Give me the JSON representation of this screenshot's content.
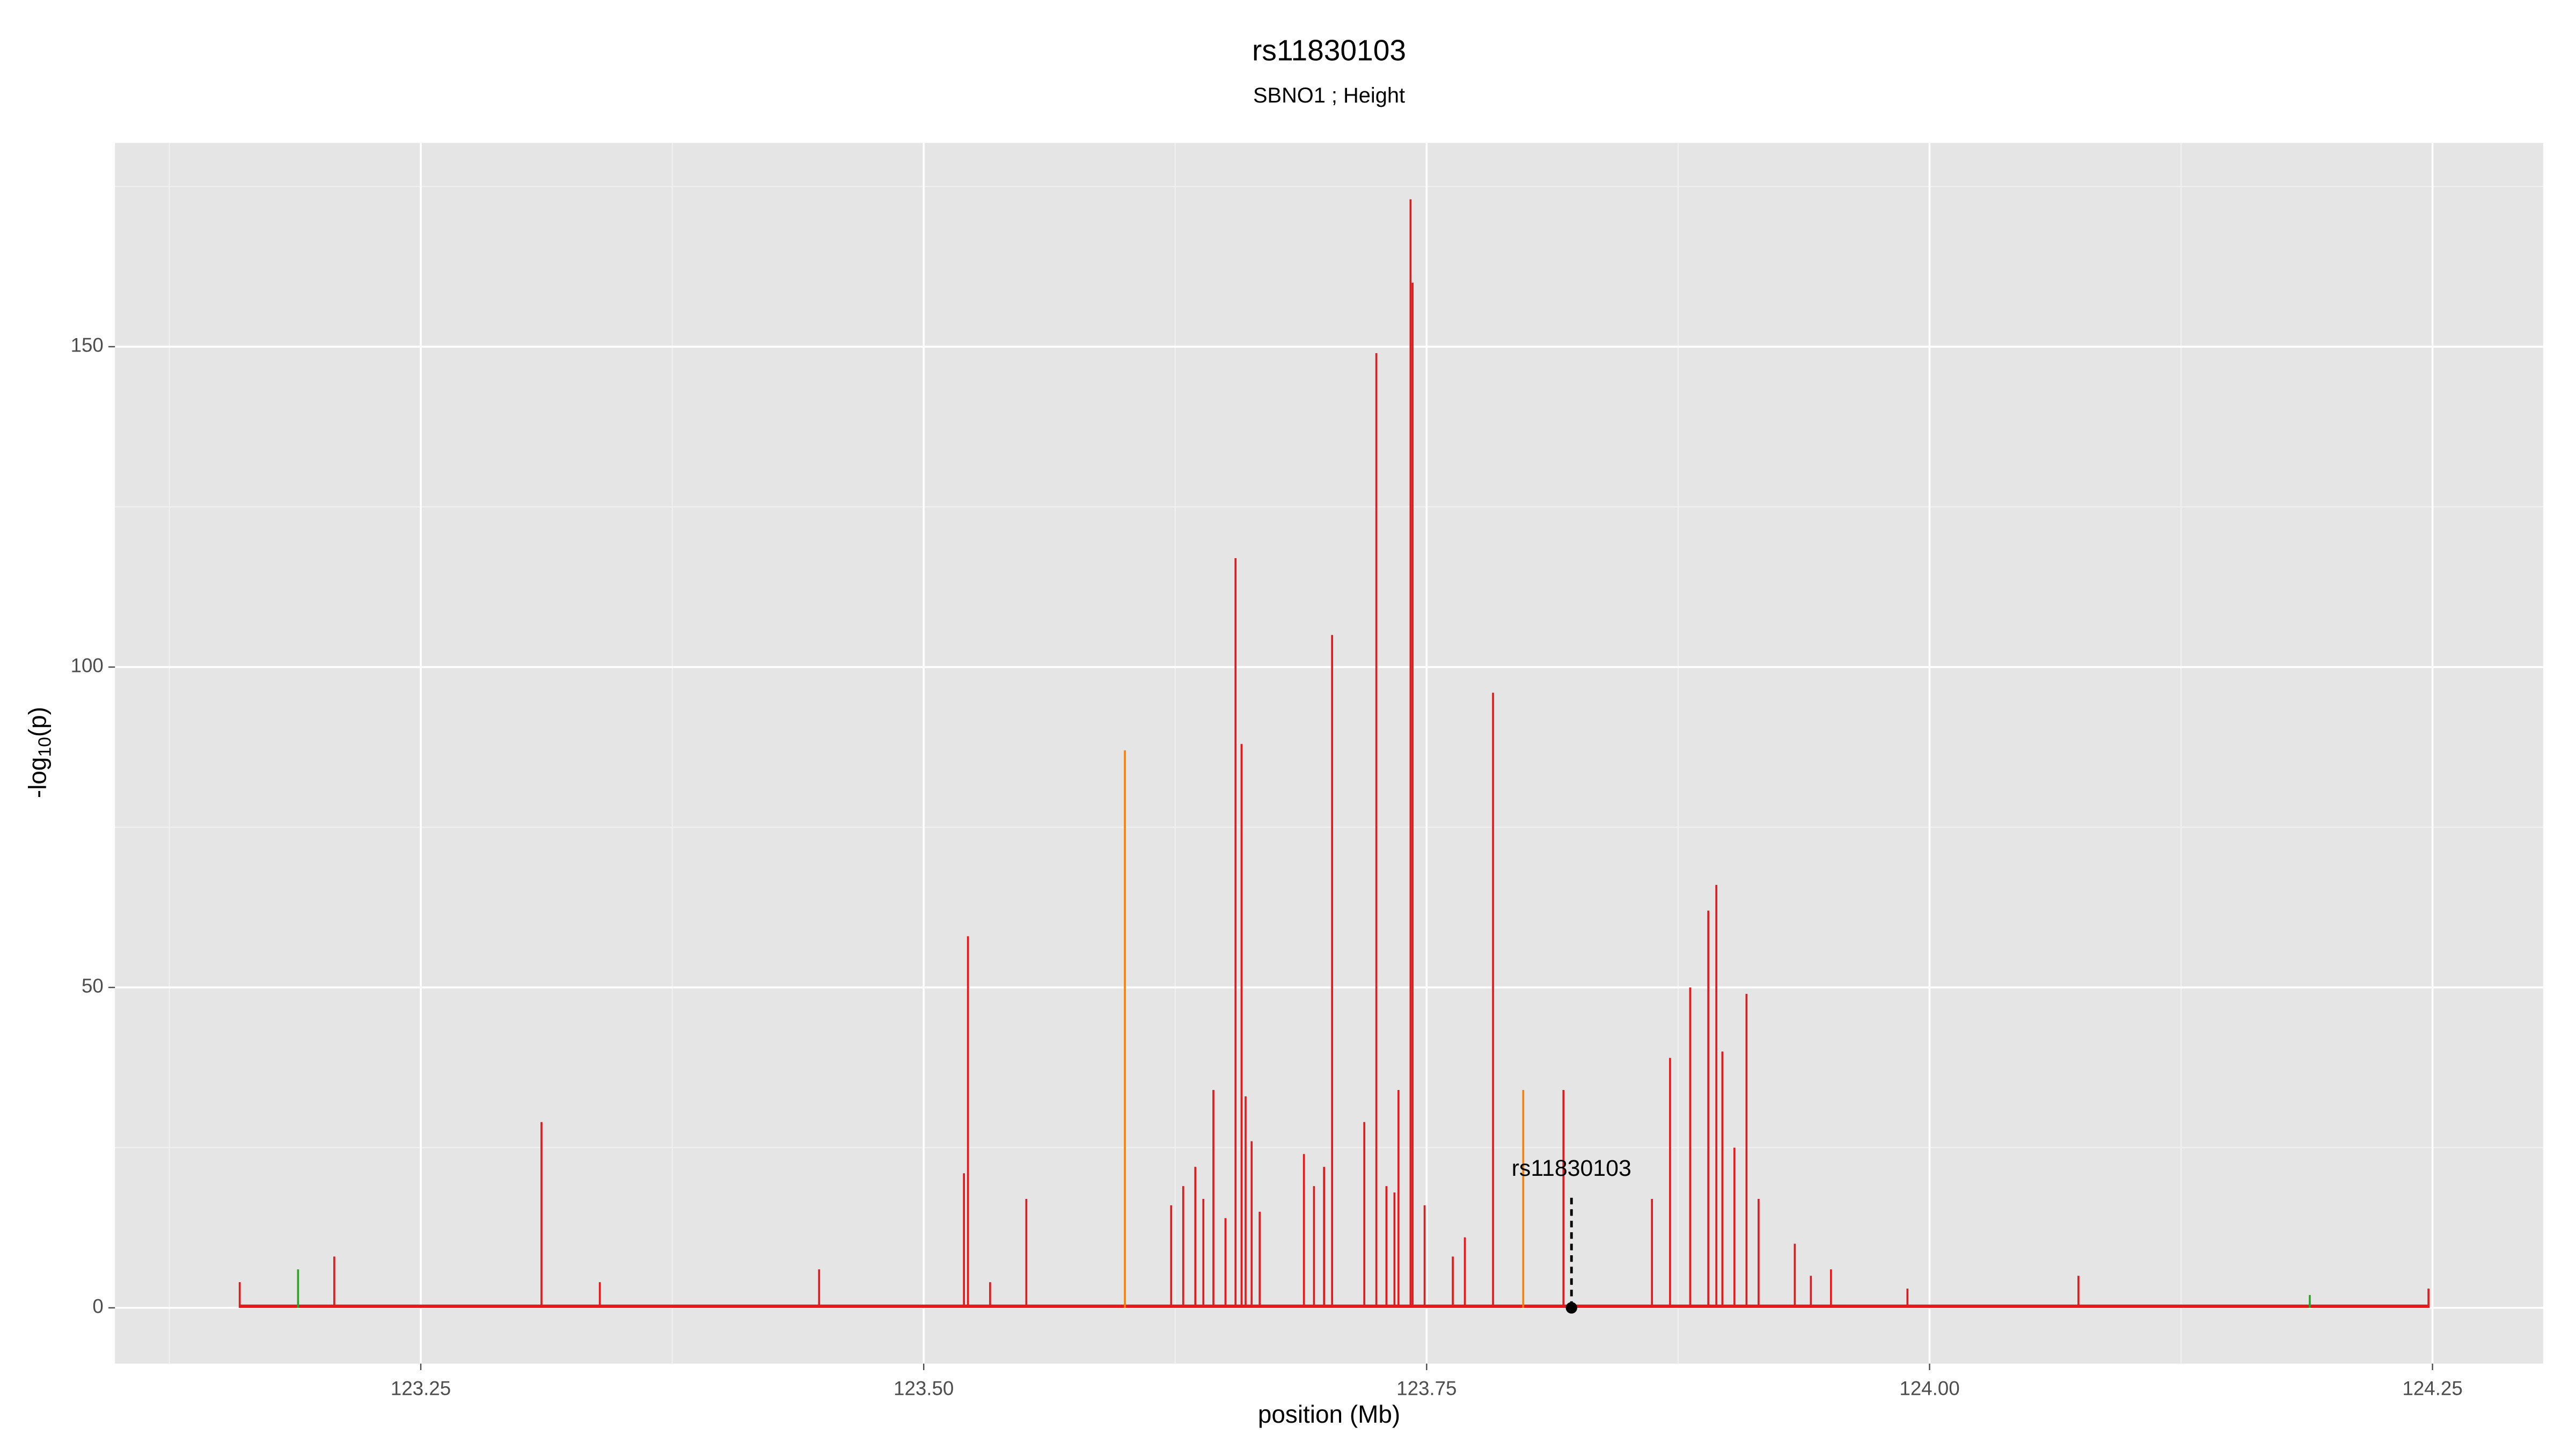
{
  "chart_data": {
    "type": "spike",
    "title": "rs11830103",
    "subtitle": "SBNO1 ; Height",
    "x_label": "position (Mb)",
    "y_label": [
      "-log",
      "10",
      "(p)"
    ],
    "xlim": [
      123.098,
      124.305
    ],
    "ylim": [
      -8.7,
      181.8
    ],
    "xticks": [
      123.25,
      {
        "value": 123.5,
        "label": "123.50"
      },
      123.75,
      {
        "value": 124,
        "label": "124.00"
      },
      124.25
    ],
    "yticks": [
      0,
      50,
      100,
      150
    ],
    "grid": true,
    "series": [
      {
        "color": "#e41a1c",
        "x": [
          123.16,
          123.207,
          123.31,
          123.339,
          123.448,
          123.52,
          123.522,
          123.533,
          123.551,
          123.623,
          123.629,
          123.635,
          123.639,
          123.644,
          123.65,
          123.655,
          123.658,
          123.66,
          123.663,
          123.667,
          123.689,
          123.694,
          123.699,
          123.703,
          123.719,
          123.725,
          123.73,
          123.734,
          123.736,
          123.742,
          123.743,
          123.749,
          123.763,
          123.769,
          123.783,
          123.818,
          123.862,
          123.871,
          123.881,
          123.89,
          123.894,
          123.897,
          123.903,
          123.909,
          123.915,
          123.933,
          123.941,
          123.951,
          123.989,
          124.074,
          124.248
        ],
        "values": [
          4,
          8,
          29,
          4,
          6,
          21,
          58,
          4,
          17,
          16,
          19,
          22,
          17,
          34,
          14,
          117,
          88,
          33,
          26,
          15,
          24,
          19,
          22,
          105,
          29,
          149,
          19,
          18,
          34,
          173,
          160,
          16,
          8,
          11,
          96,
          34,
          17,
          39,
          50,
          62,
          66,
          40,
          25,
          49,
          17,
          10,
          5,
          6,
          3,
          5,
          3
        ]
      },
      {
        "color": "#ff7f00",
        "x": [
          123.6,
          123.798
        ],
        "values": [
          87,
          34
        ]
      },
      {
        "color": "#33a02c",
        "x": [
          123.189,
          124.189
        ],
        "values": [
          6,
          2
        ]
      }
    ],
    "annotation": {
      "text": "rs11830103",
      "x": 123.822,
      "y": 0
    }
  }
}
